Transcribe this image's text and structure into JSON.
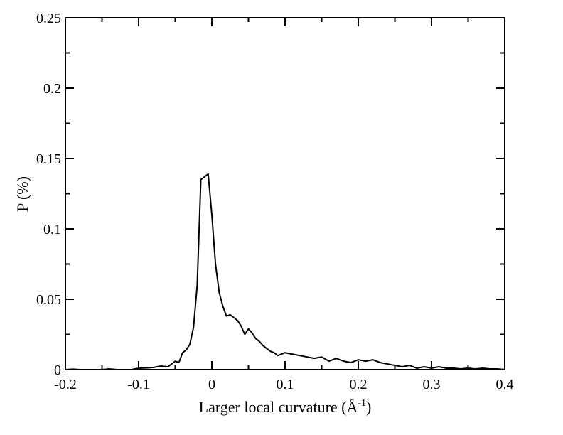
{
  "chart_data": {
    "type": "line",
    "title": "",
    "xlabel": "Larger local curvature (Å",
    "xlabel_superscript": "-1",
    "xlabel_suffix": ")",
    "ylabel": "P (%)",
    "xlim": [
      -0.2,
      0.4
    ],
    "ylim": [
      0,
      0.25
    ],
    "grid": false,
    "x_ticks": [
      -0.2,
      -0.1,
      0,
      0.1,
      0.2,
      0.3,
      0.4
    ],
    "x_tick_labels": [
      "-0.2",
      "-0.1",
      "0",
      "0.1",
      "0.2",
      "0.3",
      "0.4"
    ],
    "y_ticks": [
      0,
      0.05,
      0.1,
      0.15,
      0.2,
      0.25
    ],
    "y_tick_labels": [
      "0",
      "0.05",
      "0.1",
      "0.15",
      "0.2",
      "0.25"
    ],
    "line_color": "#000000",
    "series": [
      {
        "x": [
          -0.2,
          -0.19,
          -0.18,
          -0.17,
          -0.16,
          -0.15,
          -0.14,
          -0.13,
          -0.12,
          -0.11,
          -0.1,
          -0.09,
          -0.08,
          -0.07,
          -0.06,
          -0.05,
          -0.045,
          -0.04,
          -0.035,
          -0.03,
          -0.025,
          -0.02,
          -0.015,
          -0.01,
          -0.005,
          0,
          0.005,
          0.01,
          0.015,
          0.02,
          0.025,
          0.03,
          0.035,
          0.04,
          0.045,
          0.05,
          0.055,
          0.06,
          0.065,
          0.07,
          0.075,
          0.08,
          0.085,
          0.09,
          0.095,
          0.1,
          0.11,
          0.12,
          0.13,
          0.14,
          0.15,
          0.16,
          0.17,
          0.18,
          0.19,
          0.2,
          0.21,
          0.22,
          0.23,
          0.24,
          0.25,
          0.26,
          0.27,
          0.28,
          0.29,
          0.3,
          0.31,
          0.32,
          0.33,
          0.34,
          0.35,
          0.36,
          0.37,
          0.38,
          0.39,
          0.4
        ],
        "y": [
          0,
          0.0003,
          0,
          0,
          0,
          0,
          0.0005,
          0,
          0,
          0,
          0.001,
          0.0012,
          0.0015,
          0.0025,
          0.002,
          0.006,
          0.005,
          0.012,
          0.014,
          0.018,
          0.03,
          0.06,
          0.135,
          0.137,
          0.139,
          0.11,
          0.075,
          0.055,
          0.045,
          0.038,
          0.039,
          0.037,
          0.035,
          0.031,
          0.025,
          0.029,
          0.026,
          0.022,
          0.02,
          0.017,
          0.015,
          0.013,
          0.012,
          0.01,
          0.011,
          0.012,
          0.011,
          0.01,
          0.009,
          0.008,
          0.009,
          0.006,
          0.008,
          0.006,
          0.005,
          0.007,
          0.006,
          0.007,
          0.005,
          0.004,
          0.003,
          0.002,
          0.003,
          0.001,
          0.002,
          0.001,
          0.002,
          0.001,
          0.001,
          0.0005,
          0.001,
          0.0005,
          0.001,
          0.0005,
          0.0005,
          0
        ]
      }
    ]
  }
}
